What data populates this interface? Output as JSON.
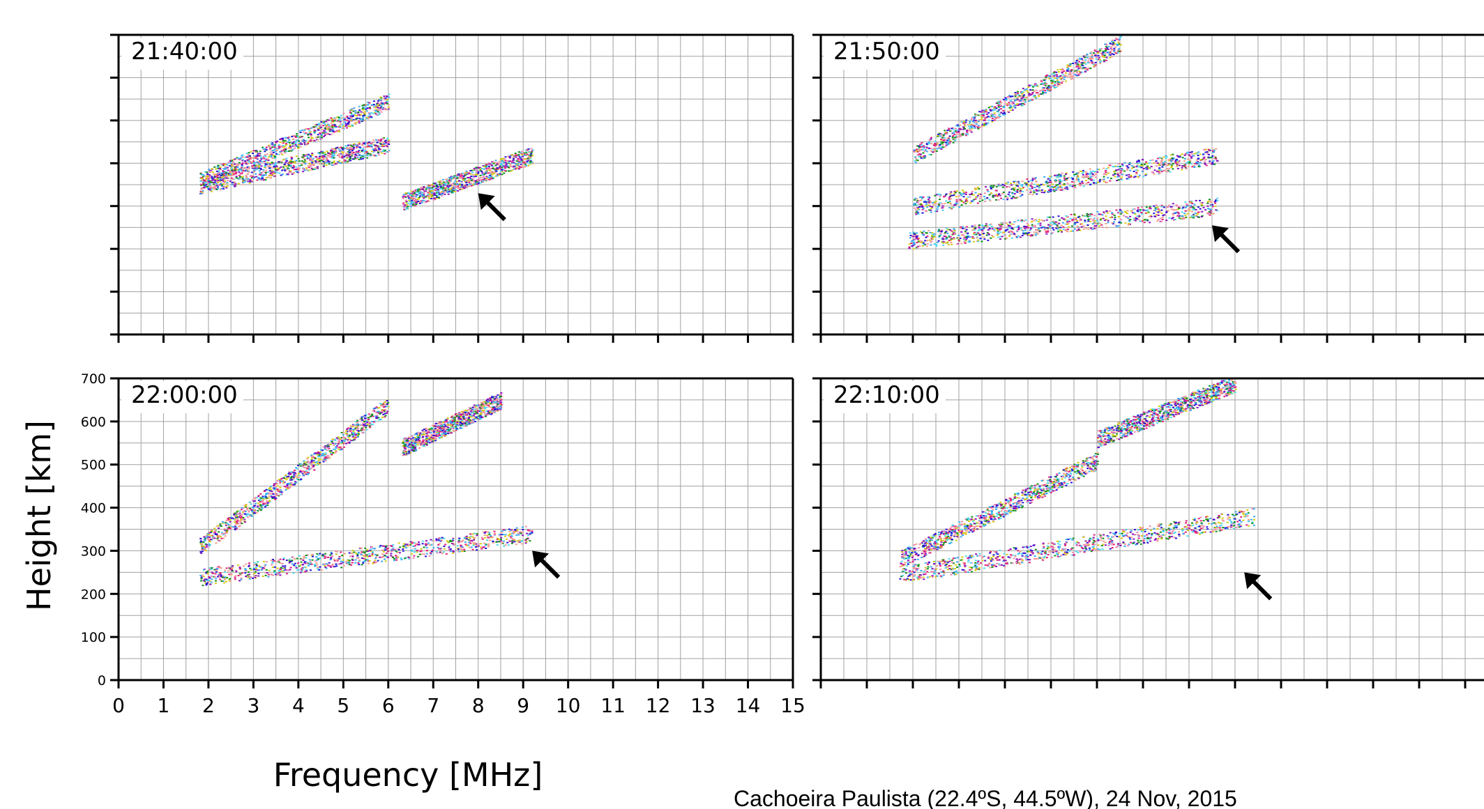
{
  "figure": {
    "ylabel": "Height [km]",
    "xlabel": "Frequency [MHz]",
    "caption": "Cachoeira Paulista (22.4ºS, 44.5ºW), 24 Nov, 2015"
  },
  "colors": {
    "grid": "#a0a0a0",
    "axis": "#000000",
    "arrow": "#000000",
    "echo_palette": [
      "#2a13d6",
      "#3aa8f0",
      "#d4cc14",
      "#e0207c",
      "#f08cb0",
      "#12901c",
      "#8a10b8",
      "#50d8f0",
      "#f4a08a"
    ]
  },
  "chart_data": [
    {
      "type": "scatter",
      "time": "21:40:00",
      "x_axis": {
        "label": "",
        "range": [
          0,
          15
        ],
        "ticks": [
          0,
          1,
          2,
          3,
          4,
          5,
          6,
          7,
          8,
          9,
          10,
          11,
          12,
          13,
          14,
          15
        ]
      },
      "y_axis": {
        "label": "",
        "range": [
          0,
          700
        ],
        "ticks": [
          0,
          100,
          200,
          300,
          400,
          500,
          600,
          700
        ]
      },
      "grid": true,
      "traces": [
        {
          "f_start": 1.8,
          "f_end": 6.0,
          "h_start": 350,
          "h_end": 445
        },
        {
          "f_start": 1.8,
          "f_end": 6.0,
          "h_start": 360,
          "h_end": 545
        },
        {
          "f_start": 6.3,
          "f_end": 9.2,
          "h_start": 310,
          "h_end": 420
        }
      ],
      "arrow": {
        "freq": 8.0,
        "height": 330
      }
    },
    {
      "type": "scatter",
      "time": "21:50:00",
      "x_axis": {
        "label": "",
        "range": [
          0,
          15
        ],
        "ticks": [
          0,
          1,
          2,
          3,
          4,
          5,
          6,
          7,
          8,
          9,
          10,
          11,
          12,
          13,
          14,
          15
        ]
      },
      "y_axis": {
        "label": "",
        "range": [
          0,
          700
        ],
        "ticks": [
          0,
          100,
          200,
          300,
          400,
          500,
          600,
          700
        ]
      },
      "grid": true,
      "traces": [
        {
          "f_start": 1.9,
          "f_end": 8.6,
          "h_start": 220,
          "h_end": 300
        },
        {
          "f_start": 2.0,
          "f_end": 8.6,
          "h_start": 300,
          "h_end": 420
        },
        {
          "f_start": 2.0,
          "f_end": 6.5,
          "h_start": 420,
          "h_end": 680
        }
      ],
      "arrow": {
        "freq": 8.5,
        "height": 255
      }
    },
    {
      "type": "scatter",
      "time": "22:00:00",
      "x_axis": {
        "label": "",
        "range": [
          0,
          15
        ],
        "ticks": [
          0,
          1,
          2,
          3,
          4,
          5,
          6,
          7,
          8,
          9,
          10,
          11,
          12,
          13,
          14,
          15
        ]
      },
      "y_axis": {
        "label": "",
        "range": [
          0,
          700
        ],
        "ticks": [
          0,
          100,
          200,
          300,
          400,
          500,
          600,
          700
        ]
      },
      "grid": true,
      "traces": [
        {
          "f_start": 1.8,
          "f_end": 9.2,
          "h_start": 240,
          "h_end": 340
        },
        {
          "f_start": 1.8,
          "f_end": 6.0,
          "h_start": 310,
          "h_end": 640
        },
        {
          "f_start": 6.3,
          "f_end": 8.5,
          "h_start": 540,
          "h_end": 650
        }
      ],
      "arrow": {
        "freq": 9.2,
        "height": 300
      }
    },
    {
      "type": "scatter",
      "time": "22:10:00",
      "x_axis": {
        "label": "",
        "range": [
          0,
          15
        ],
        "ticks": [
          0,
          1,
          2,
          3,
          4,
          5,
          6,
          7,
          8,
          9,
          10,
          11,
          12,
          13,
          14,
          15
        ]
      },
      "y_axis": {
        "label": "",
        "range": [
          0,
          700
        ],
        "ticks": [
          0,
          100,
          200,
          300,
          400,
          500,
          600,
          700
        ]
      },
      "grid": true,
      "traces": [
        {
          "f_start": 1.7,
          "f_end": 9.4,
          "h_start": 245,
          "h_end": 380
        },
        {
          "f_start": 1.7,
          "f_end": 6.0,
          "h_start": 280,
          "h_end": 510
        },
        {
          "f_start": 6.0,
          "f_end": 9.0,
          "h_start": 560,
          "h_end": 690
        }
      ],
      "arrow": {
        "freq": 9.2,
        "height": 250
      }
    }
  ]
}
